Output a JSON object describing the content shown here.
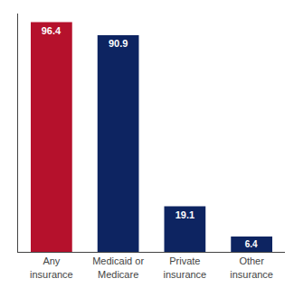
{
  "chart_data": {
    "type": "bar",
    "categories": [
      "Any\ninsurance",
      "Medicaid or\nMedicare",
      "Private\ninsurance",
      "Other\ninsurance"
    ],
    "values": [
      96.4,
      90.9,
      19.1,
      6.4
    ],
    "colors": [
      "#b5112c",
      "#0d2461",
      "#0d2461",
      "#0d2461"
    ],
    "ylim": [
      0,
      100
    ],
    "grid": false,
    "data_labels": true,
    "tick_labels": "x"
  }
}
